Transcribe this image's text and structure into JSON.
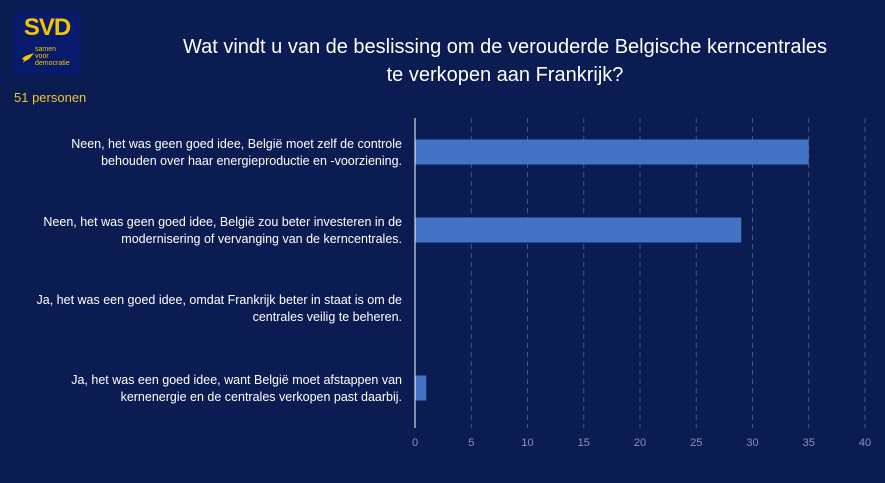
{
  "logo": {
    "name": "SVD",
    "tagline": [
      "samen",
      "voor",
      "democratie"
    ],
    "accent": "#f5c400"
  },
  "respondents": "51 personen",
  "colors": {
    "background": "#0b1c53",
    "bar": "#4472c4",
    "grid": "#5a6ea0"
  },
  "chart_data": {
    "type": "bar",
    "orientation": "horizontal",
    "title_lines": [
      "Wat vindt u van de beslissing om de verouderde Belgische kerncentrales",
      "te verkopen aan Frankrijk?"
    ],
    "categories": [
      [
        "Neen, het was geen goed idee, België moet zelf de controle",
        "behouden over haar energieproductie en -voorziening."
      ],
      [
        "Neen, het was geen goed idee, België zou beter investeren in de",
        "modernisering of vervanging van de kerncentrales."
      ],
      [
        "Ja, het was een goed idee, omdat Frankrijk beter in staat is om de",
        "centrales veilig te beheren."
      ],
      [
        "Ja, het was een goed idee, want België moet afstappen van",
        "kernenergie en de centrales verkopen past daarbij."
      ]
    ],
    "values": [
      35,
      29,
      0,
      1
    ],
    "xlim": [
      0,
      40
    ],
    "xticks": [
      0,
      5,
      10,
      15,
      20,
      25,
      30,
      35,
      40
    ],
    "grid": "vertical dashed",
    "xlabel": "",
    "ylabel": ""
  }
}
